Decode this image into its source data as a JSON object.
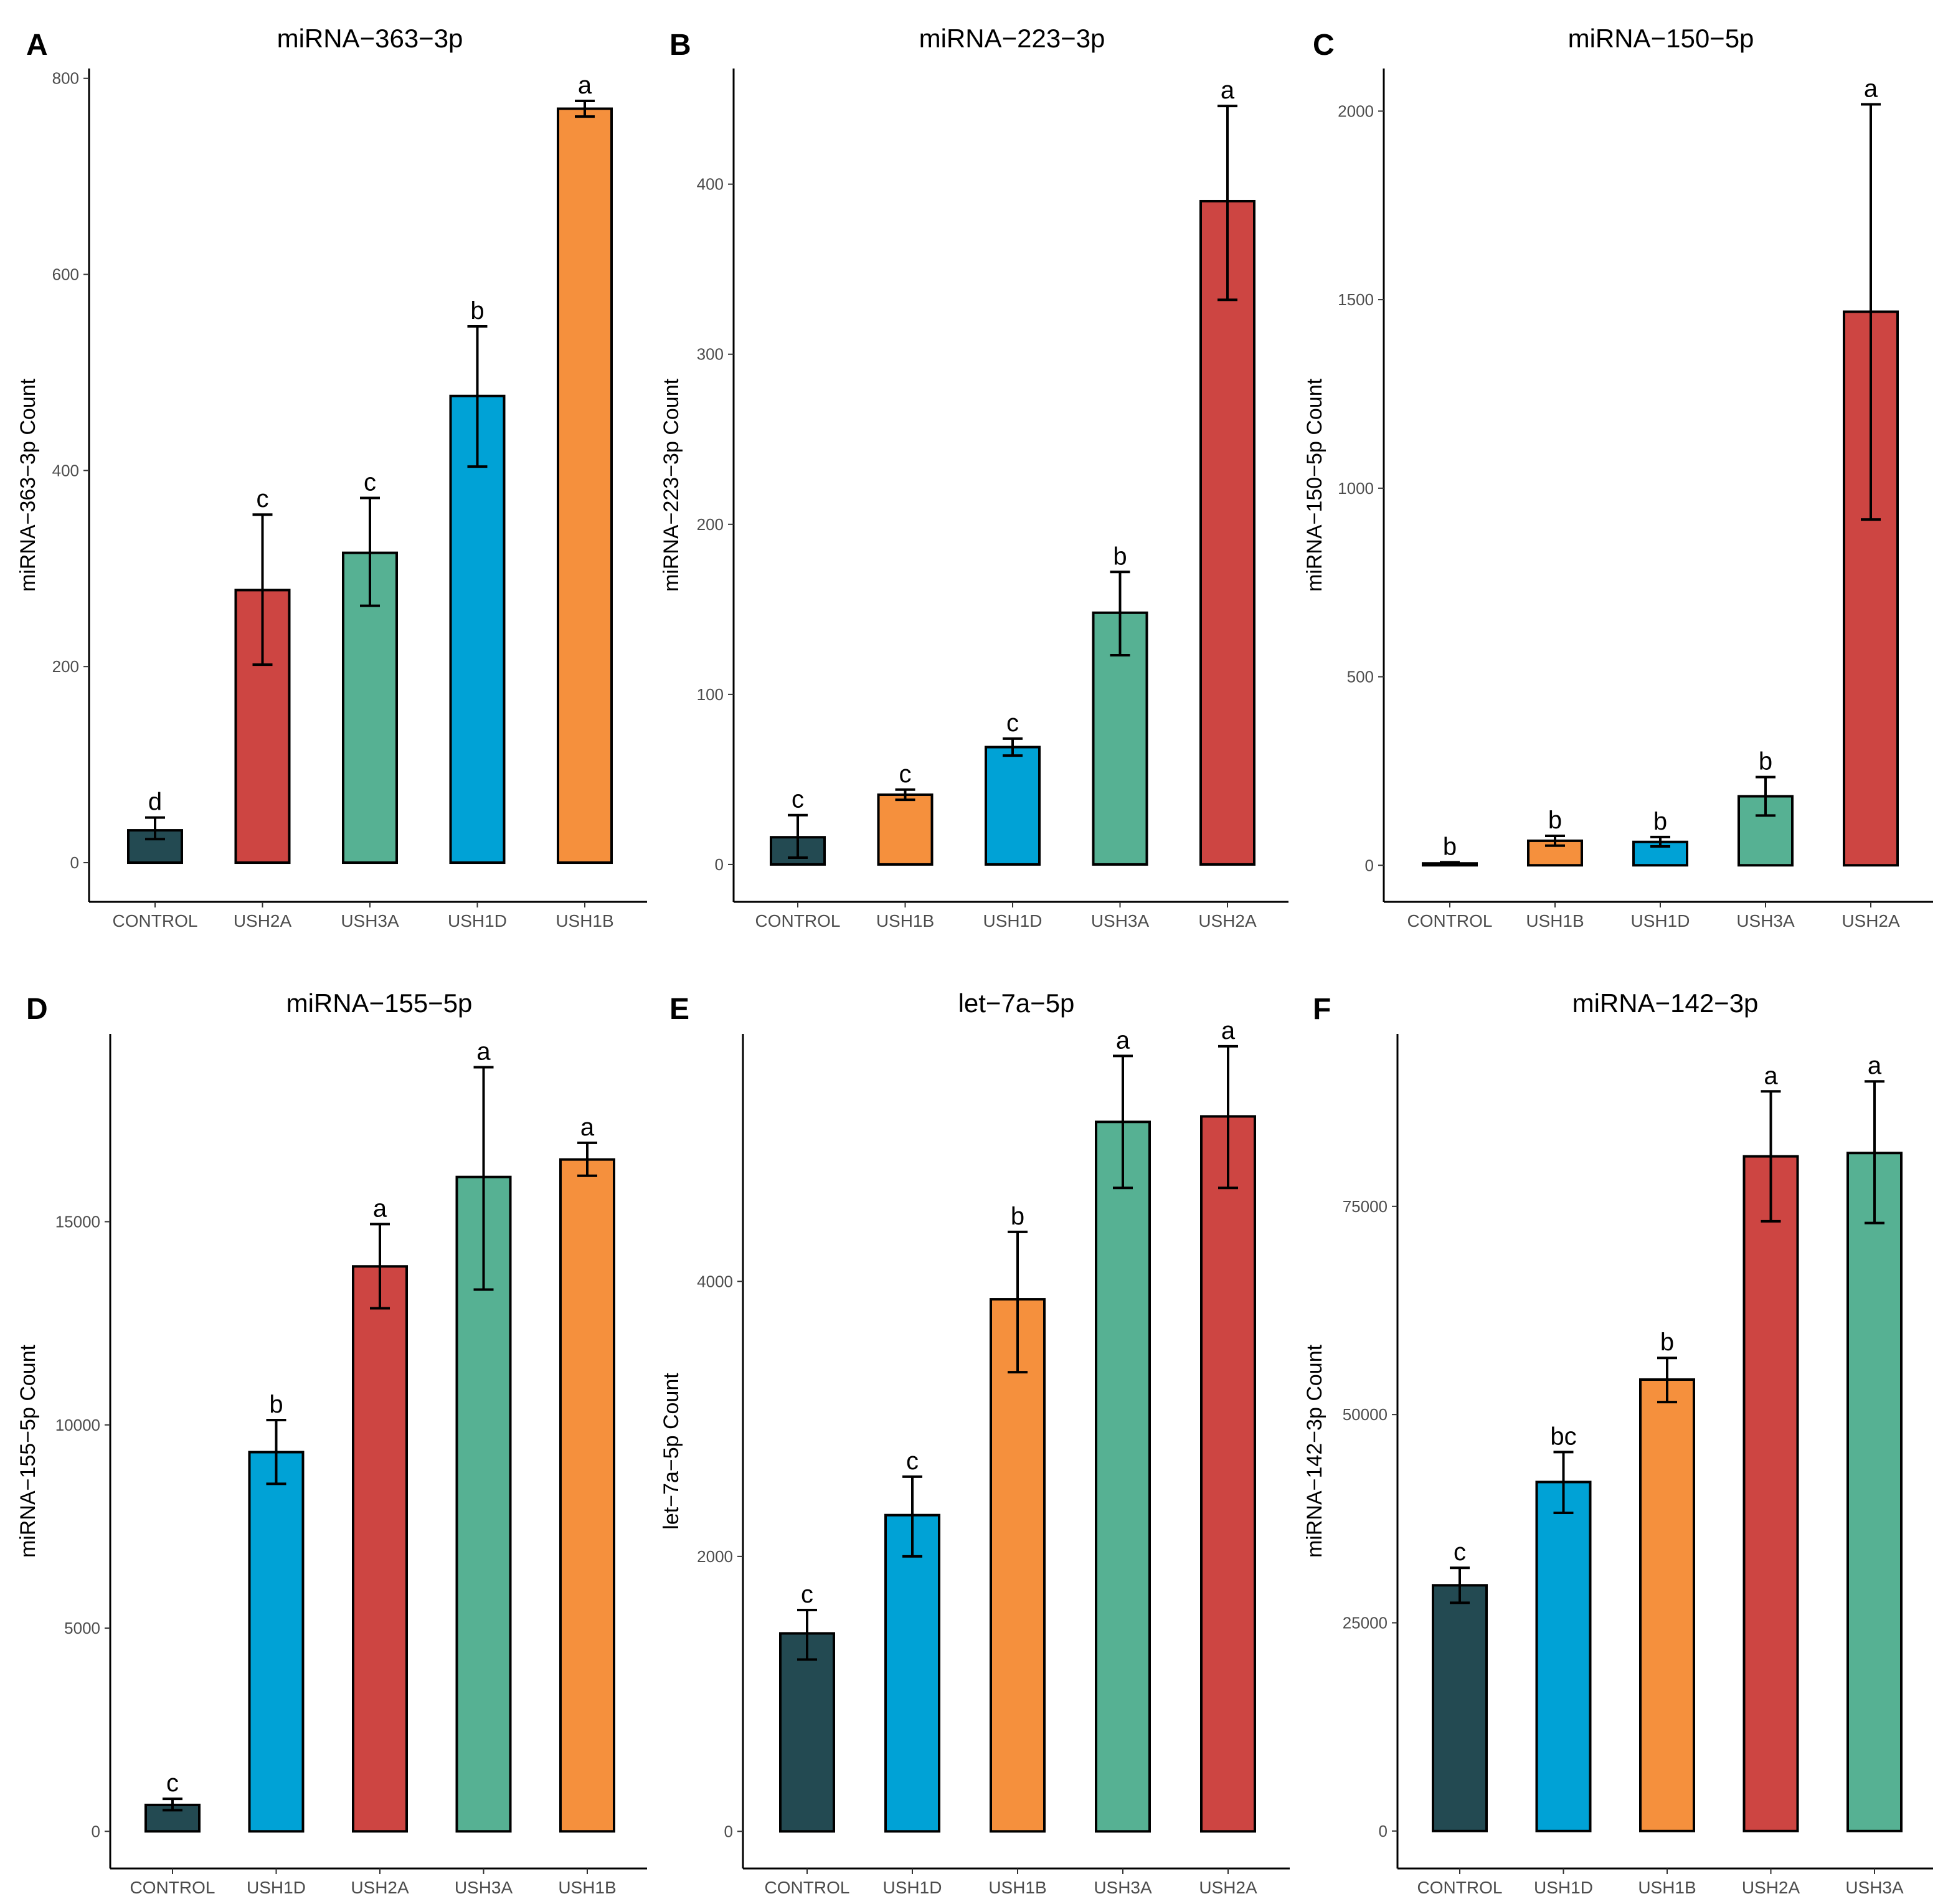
{
  "colors": {
    "CONTROL": "#234a52",
    "USH1B": "#f5903d",
    "USH1D": "#00a2d6",
    "USH2A": "#cd4542",
    "USH3A": "#56b193",
    "axis": "#000000"
  },
  "chart_data": [
    {
      "type": "bar",
      "panel": "A",
      "title": "miRNA−363−3p",
      "xlabel": "",
      "ylabel": "miRNA−363−3p Count",
      "ylim": [
        -40,
        810
      ],
      "yticks": [
        0,
        200,
        400,
        600,
        800
      ],
      "categories": [
        "CONTROL",
        "USH2A",
        "USH3A",
        "USH1D",
        "USH1B"
      ],
      "values": [
        33,
        278,
        316,
        476,
        769
      ],
      "errors": [
        [
          24,
          46
        ],
        [
          202,
          355
        ],
        [
          262,
          372
        ],
        [
          404,
          547
        ],
        [
          761,
          777
        ]
      ],
      "letters": [
        "d",
        "c",
        "c",
        "b",
        "a"
      ]
    },
    {
      "type": "bar",
      "panel": "B",
      "title": "miRNA−223−3p",
      "xlabel": "",
      "ylabel": "miRNA−223−3p Count",
      "ylim": [
        -22,
        468
      ],
      "yticks": [
        0,
        100,
        200,
        300,
        400
      ],
      "categories": [
        "CONTROL",
        "USH1B",
        "USH1D",
        "USH3A",
        "USH2A"
      ],
      "values": [
        16,
        41,
        69,
        148,
        390
      ],
      "errors": [
        [
          4,
          29
        ],
        [
          38,
          44
        ],
        [
          64,
          74
        ],
        [
          123,
          172
        ],
        [
          332,
          446
        ]
      ],
      "letters": [
        "c",
        "c",
        "c",
        "b",
        "a"
      ]
    },
    {
      "type": "bar",
      "panel": "C",
      "title": "miRNA−150−5p",
      "xlabel": "",
      "ylabel": "miRNA−150−5p Count",
      "ylim": [
        -97,
        2113
      ],
      "yticks": [
        0,
        500,
        1000,
        1500,
        2000
      ],
      "categories": [
        "CONTROL",
        "USH1B",
        "USH1D",
        "USH3A",
        "USH2A"
      ],
      "values": [
        5,
        65,
        62,
        183,
        1468
      ],
      "errors": [
        [
          2,
          8
        ],
        [
          52,
          78
        ],
        [
          50,
          75
        ],
        [
          132,
          234
        ],
        [
          917,
          2018
        ]
      ],
      "letters": [
        "b",
        "b",
        "b",
        "b",
        "a"
      ]
    },
    {
      "type": "bar",
      "panel": "D",
      "title": "miRNA−155−5p",
      "xlabel": "",
      "ylabel": "miRNA−155−5p Count",
      "ylim": [
        -914,
        19620
      ],
      "yticks": [
        0,
        5000,
        10000,
        15000
      ],
      "categories": [
        "CONTROL",
        "USH1D",
        "USH2A",
        "USH3A",
        "USH1B"
      ],
      "values": [
        650,
        9330,
        13900,
        16100,
        16530
      ],
      "errors": [
        [
          520,
          800
        ],
        [
          8550,
          10120
        ],
        [
          12870,
          14940
        ],
        [
          13330,
          18800
        ],
        [
          16130,
          16940
        ]
      ],
      "letters": [
        "c",
        "b",
        "a",
        "a",
        "a"
      ]
    },
    {
      "type": "bar",
      "panel": "E",
      "title": "let−7a−5p",
      "xlabel": "",
      "ylabel": "let−7a−5p Count",
      "ylim": [
        -270,
        5800
      ],
      "yticks": [
        0,
        2000,
        4000
      ],
      "categories": [
        "CONTROL",
        "USH1D",
        "USH1B",
        "USH3A",
        "USH2A"
      ],
      "values": [
        1440,
        2300,
        3870,
        5160,
        5200
      ],
      "errors": [
        [
          1250,
          1610
        ],
        [
          2000,
          2580
        ],
        [
          3340,
          4360
        ],
        [
          4680,
          5640
        ],
        [
          4680,
          5710
        ]
      ],
      "letters": [
        "c",
        "c",
        "b",
        "a",
        "a"
      ]
    },
    {
      "type": "bar",
      "panel": "F",
      "title": "miRNA−142−3p",
      "xlabel": "",
      "ylabel": "miRNA−142−3p Count",
      "ylim": [
        -4500,
        95700
      ],
      "yticks": [
        0,
        25000,
        50000,
        75000
      ],
      "categories": [
        "CONTROL",
        "USH1D",
        "USH1B",
        "USH2A",
        "USH3A"
      ],
      "values": [
        29500,
        41900,
        54200,
        81000,
        81400
      ],
      "errors": [
        [
          27400,
          31600
        ],
        [
          38200,
          45500
        ],
        [
          51500,
          56800
        ],
        [
          73200,
          88800
        ],
        [
          73000,
          90000
        ]
      ],
      "letters": [
        "c",
        "bc",
        "b",
        "a",
        "a"
      ]
    }
  ]
}
